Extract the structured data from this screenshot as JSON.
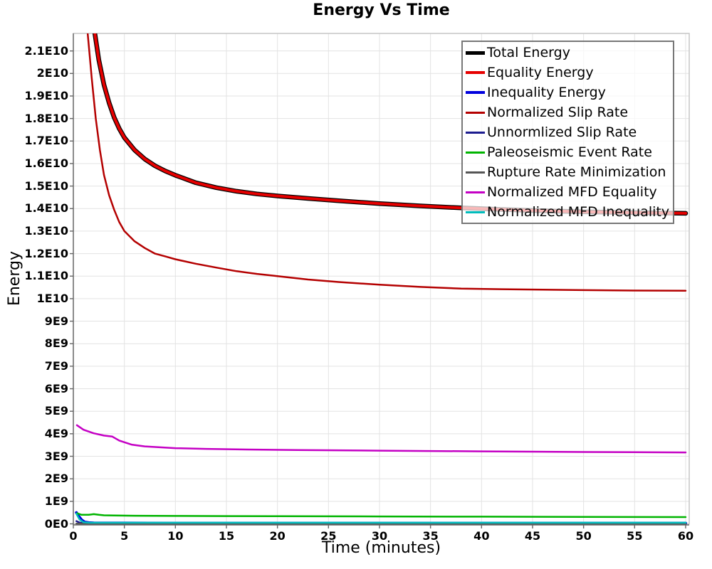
{
  "title": "Energy Vs Time",
  "axes": {
    "x": {
      "label": "Time (minutes)",
      "ticks": [
        0,
        5,
        10,
        15,
        20,
        25,
        30,
        35,
        40,
        45,
        50,
        55,
        60
      ],
      "min": 0,
      "max": 60.35
    },
    "y": {
      "label": "Energy",
      "ticks": [
        {
          "v": 0,
          "label": "0E0"
        },
        {
          "v": 1,
          "label": "1E9"
        },
        {
          "v": 2,
          "label": "2E9"
        },
        {
          "v": 3,
          "label": "3E9"
        },
        {
          "v": 4,
          "label": "4E9"
        },
        {
          "v": 5,
          "label": "5E9"
        },
        {
          "v": 6,
          "label": "6E9"
        },
        {
          "v": 7,
          "label": "7E9"
        },
        {
          "v": 8,
          "label": "8E9"
        },
        {
          "v": 9,
          "label": "9E9"
        },
        {
          "v": 10,
          "label": "1E10"
        },
        {
          "v": 11,
          "label": "1.1E10"
        },
        {
          "v": 12,
          "label": "1.2E10"
        },
        {
          "v": 13,
          "label": "1.3E10"
        },
        {
          "v": 14,
          "label": "1.4E10"
        },
        {
          "v": 15,
          "label": "1.5E10"
        },
        {
          "v": 16,
          "label": "1.6E10"
        },
        {
          "v": 17,
          "label": "1.7E10"
        },
        {
          "v": 18,
          "label": "1.8E10"
        },
        {
          "v": 19,
          "label": "1.9E10"
        },
        {
          "v": 20,
          "label": "2E10"
        },
        {
          "v": 21,
          "label": "2.1E10"
        }
      ],
      "min": 0,
      "max": 21.78,
      "unit_note": "tick values in units of 1E9"
    }
  },
  "colors": {
    "grid": "#e3e3e3",
    "border": "#c6c6c6",
    "axis": "#666666",
    "legend_border": "#777777"
  },
  "chart_data": {
    "type": "line",
    "title": "Energy Vs Time",
    "xlabel": "Time (minutes)",
    "ylabel": "Energy",
    "xlim": [
      0,
      60.35
    ],
    "ylim": [
      0,
      21780000000
    ],
    "grid": true,
    "legend_position": "top-right",
    "value_scale": 1000000000,
    "series": [
      {
        "name": "Total Energy",
        "color": "#000000",
        "width": 6.5,
        "legend_thickness": 5,
        "points": [
          [
            1.85,
            22.5
          ],
          [
            2.1,
            21.8
          ],
          [
            2.5,
            20.6
          ],
          [
            3,
            19.5
          ],
          [
            3.5,
            18.7
          ],
          [
            4,
            18.05
          ],
          [
            4.5,
            17.55
          ],
          [
            5,
            17.15
          ],
          [
            6,
            16.6
          ],
          [
            7,
            16.2
          ],
          [
            8,
            15.9
          ],
          [
            9,
            15.67
          ],
          [
            10,
            15.48
          ],
          [
            12,
            15.15
          ],
          [
            14,
            14.93
          ],
          [
            16,
            14.77
          ],
          [
            18,
            14.65
          ],
          [
            20,
            14.56
          ],
          [
            23,
            14.45
          ],
          [
            26,
            14.35
          ],
          [
            30,
            14.22
          ],
          [
            34,
            14.12
          ],
          [
            38,
            14.03
          ],
          [
            42,
            13.96
          ],
          [
            46,
            13.9
          ],
          [
            50,
            13.86
          ],
          [
            55,
            13.82
          ],
          [
            60,
            13.79
          ]
        ]
      },
      {
        "name": "Equality Energy",
        "color": "#e60000",
        "width": 4,
        "legend_thickness": 4,
        "points": [
          [
            1.85,
            22.5
          ],
          [
            2.1,
            21.8
          ],
          [
            2.5,
            20.6
          ],
          [
            3,
            19.5
          ],
          [
            3.5,
            18.7
          ],
          [
            4,
            18.05
          ],
          [
            4.5,
            17.55
          ],
          [
            5,
            17.15
          ],
          [
            6,
            16.6
          ],
          [
            7,
            16.2
          ],
          [
            8,
            15.9
          ],
          [
            9,
            15.67
          ],
          [
            10,
            15.48
          ],
          [
            12,
            15.15
          ],
          [
            14,
            14.93
          ],
          [
            16,
            14.77
          ],
          [
            18,
            14.65
          ],
          [
            20,
            14.56
          ],
          [
            23,
            14.45
          ],
          [
            26,
            14.35
          ],
          [
            30,
            14.22
          ],
          [
            34,
            14.12
          ],
          [
            38,
            14.03
          ],
          [
            42,
            13.96
          ],
          [
            46,
            13.9
          ],
          [
            50,
            13.86
          ],
          [
            55,
            13.82
          ],
          [
            60,
            13.79
          ]
        ]
      },
      {
        "name": "Inequality Energy",
        "color": "#0000dd",
        "width": 4,
        "legend_thickness": 4,
        "points": [
          [
            0.3,
            0.5
          ],
          [
            0.5,
            0.35
          ],
          [
            0.8,
            0.18
          ],
          [
            1.1,
            0.08
          ],
          [
            1.5,
            0.05
          ],
          [
            2,
            0.04
          ],
          [
            5,
            0.035
          ],
          [
            10,
            0.03
          ],
          [
            20,
            0.03
          ],
          [
            40,
            0.03
          ],
          [
            60,
            0.03
          ]
        ]
      },
      {
        "name": "Normalized Slip Rate",
        "color": "#b40000",
        "width": 2.5,
        "legend_thickness": 3,
        "points": [
          [
            1.15,
            22.5
          ],
          [
            1.4,
            21.8
          ],
          [
            1.8,
            19.8
          ],
          [
            2.2,
            18.0
          ],
          [
            2.6,
            16.6
          ],
          [
            3,
            15.5
          ],
          [
            3.5,
            14.6
          ],
          [
            4,
            13.95
          ],
          [
            4.5,
            13.4
          ],
          [
            5,
            13.0
          ],
          [
            6,
            12.55
          ],
          [
            7,
            12.25
          ],
          [
            8,
            12.0
          ],
          [
            9,
            11.88
          ],
          [
            10,
            11.75
          ],
          [
            12,
            11.55
          ],
          [
            14,
            11.38
          ],
          [
            16,
            11.22
          ],
          [
            18,
            11.1
          ],
          [
            20,
            11.0
          ],
          [
            23,
            10.85
          ],
          [
            26,
            10.74
          ],
          [
            30,
            10.62
          ],
          [
            34,
            10.52
          ],
          [
            38,
            10.45
          ],
          [
            42,
            10.42
          ],
          [
            46,
            10.4
          ],
          [
            50,
            10.38
          ],
          [
            55,
            10.36
          ],
          [
            60,
            10.35
          ]
        ]
      },
      {
        "name": "Unnormlized Slip Rate",
        "color": "#1c1c8f",
        "width": 2.5,
        "legend_thickness": 3,
        "points": [
          [
            0.3,
            0.12
          ],
          [
            0.6,
            0.06
          ],
          [
            1,
            0.03
          ],
          [
            2,
            0.02
          ],
          [
            10,
            0.02
          ],
          [
            30,
            0.02
          ],
          [
            60,
            0.02
          ]
        ]
      },
      {
        "name": "Paleoseismic Event Rate",
        "color": "#00b400",
        "width": 2.5,
        "legend_thickness": 3,
        "points": [
          [
            0.35,
            0.47
          ],
          [
            0.8,
            0.4
          ],
          [
            1.5,
            0.4
          ],
          [
            2,
            0.43
          ],
          [
            2.5,
            0.4
          ],
          [
            3,
            0.38
          ],
          [
            4,
            0.37
          ],
          [
            6,
            0.36
          ],
          [
            10,
            0.35
          ],
          [
            15,
            0.345
          ],
          [
            20,
            0.34
          ],
          [
            30,
            0.33
          ],
          [
            40,
            0.32
          ],
          [
            50,
            0.31
          ],
          [
            60,
            0.3
          ]
        ]
      },
      {
        "name": "Rupture Rate Minimization",
        "color": "#555555",
        "width": 2.5,
        "legend_thickness": 3,
        "points": [
          [
            0.3,
            0.01
          ],
          [
            60,
            0.01
          ]
        ]
      },
      {
        "name": "Normalized MFD Equality",
        "color": "#c400c4",
        "width": 2.5,
        "legend_thickness": 3,
        "points": [
          [
            0.35,
            4.38
          ],
          [
            1,
            4.18
          ],
          [
            2,
            4.02
          ],
          [
            3,
            3.92
          ],
          [
            3.8,
            3.88
          ],
          [
            4.5,
            3.7
          ],
          [
            5.7,
            3.52
          ],
          [
            7,
            3.44
          ],
          [
            10,
            3.36
          ],
          [
            13,
            3.33
          ],
          [
            17,
            3.3
          ],
          [
            22,
            3.28
          ],
          [
            30,
            3.25
          ],
          [
            40,
            3.22
          ],
          [
            50,
            3.19
          ],
          [
            60,
            3.17
          ]
        ]
      },
      {
        "name": "Normalized MFD Inequality",
        "color": "#00bcbc",
        "width": 2.5,
        "legend_thickness": 3,
        "points": [
          [
            0.3,
            0.45
          ],
          [
            0.6,
            0.2
          ],
          [
            1,
            0.07
          ],
          [
            1.5,
            0.05
          ],
          [
            3,
            0.05
          ],
          [
            10,
            0.05
          ],
          [
            30,
            0.05
          ],
          [
            60,
            0.05
          ]
        ]
      }
    ]
  },
  "legend": {
    "items": [
      {
        "label": "Total Energy"
      },
      {
        "label": "Equality Energy"
      },
      {
        "label": "Inequality Energy"
      },
      {
        "label": "Normalized Slip Rate"
      },
      {
        "label": "Unnormlized Slip Rate"
      },
      {
        "label": "Paleoseismic Event Rate"
      },
      {
        "label": "Rupture Rate Minimization"
      },
      {
        "label": "Normalized MFD Equality"
      },
      {
        "label": "Normalized MFD Inequality"
      }
    ]
  }
}
